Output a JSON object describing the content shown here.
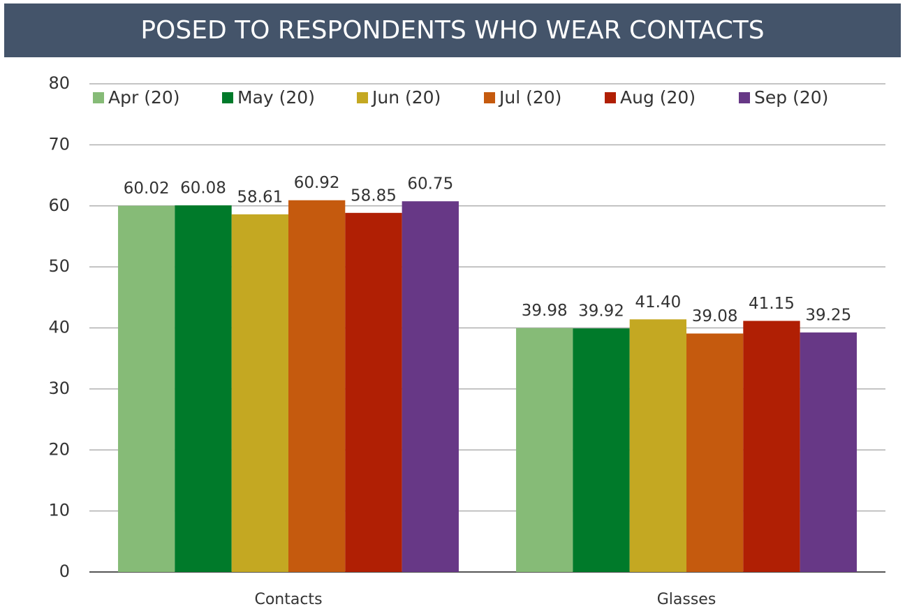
{
  "chart_data": {
    "type": "bar",
    "title": "POSED TO RESPONDENTS WHO WEAR CONTACTS",
    "categories": [
      "Contacts",
      "Glasses"
    ],
    "series": [
      {
        "name": "Apr (20)",
        "color": "#86bb77",
        "values": [
          60.02,
          39.98
        ],
        "value_labels": [
          "60.02",
          "39.98"
        ]
      },
      {
        "name": "May (20)",
        "color": "#007a2a",
        "values": [
          60.08,
          39.92
        ],
        "value_labels": [
          "60.08",
          "39.92"
        ]
      },
      {
        "name": "Jun (20)",
        "color": "#c4a822",
        "values": [
          58.61,
          41.4
        ],
        "value_labels": [
          "58.61",
          "41.40"
        ]
      },
      {
        "name": "Jul (20)",
        "color": "#c55a0e",
        "values": [
          60.92,
          39.08
        ],
        "value_labels": [
          "60.92",
          "39.08"
        ]
      },
      {
        "name": "Aug (20)",
        "color": "#b01f04",
        "values": [
          58.85,
          41.15
        ],
        "value_labels": [
          "58.85",
          "41.15"
        ]
      },
      {
        "name": "Sep (20)",
        "color": "#673886",
        "values": [
          60.75,
          39.25
        ],
        "value_labels": [
          "60.75",
          "39.25"
        ]
      }
    ],
    "ylim": [
      0,
      80
    ],
    "yticks": [
      0,
      10,
      20,
      30,
      40,
      50,
      60,
      70,
      80
    ],
    "grid": true,
    "legend": "top"
  }
}
